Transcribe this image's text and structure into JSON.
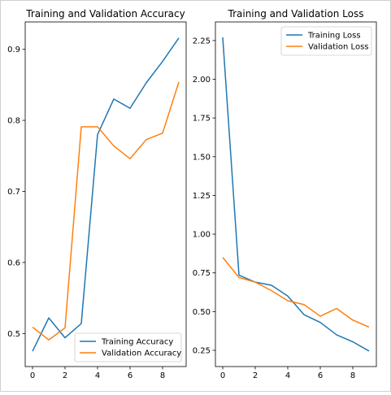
{
  "colors": {
    "training": "#1f77b4",
    "validation": "#ff7f0e"
  },
  "chart_data": [
    {
      "type": "line",
      "title": "Training and Validation Accuracy",
      "xlabel": "",
      "ylabel": "",
      "xlim": [
        -0.45,
        9.45
      ],
      "ylim": [
        0.4535,
        0.9385
      ],
      "x_ticks": [
        0,
        2,
        4,
        6,
        8
      ],
      "x_tick_labels": [
        "0",
        "2",
        "4",
        "6",
        "8"
      ],
      "y_ticks": [
        0.5,
        0.6,
        0.7,
        0.8,
        0.9
      ],
      "y_tick_labels": [
        "0.5",
        "0.6",
        "0.7",
        "0.8",
        "0.9"
      ],
      "grid": false,
      "legend_position": "lower-right",
      "x": [
        0,
        1,
        2,
        3,
        4,
        5,
        6,
        7,
        8,
        9
      ],
      "series": [
        {
          "name": "Training Accuracy",
          "color": "#1f77b4",
          "values": [
            0.475,
            0.522,
            0.494,
            0.514,
            0.78,
            0.83,
            0.817,
            0.853,
            0.883,
            0.916
          ]
        },
        {
          "name": "Validation Accuracy",
          "color": "#ff7f0e",
          "values": [
            0.509,
            0.491,
            0.508,
            0.791,
            0.791,
            0.764,
            0.746,
            0.773,
            0.782,
            0.854
          ]
        }
      ]
    },
    {
      "type": "line",
      "title": "Training and Validation Loss",
      "xlabel": "",
      "ylabel": "",
      "xlim": [
        -0.45,
        9.45
      ],
      "ylim": [
        0.145,
        2.37
      ],
      "x_ticks": [
        0,
        2,
        4,
        6,
        8
      ],
      "x_tick_labels": [
        "0",
        "2",
        "4",
        "6",
        "8"
      ],
      "y_ticks": [
        0.25,
        0.5,
        0.75,
        1.0,
        1.25,
        1.5,
        1.75,
        2.0,
        2.25
      ],
      "y_tick_labels": [
        "0.25",
        "0.50",
        "0.75",
        "1.00",
        "1.25",
        "1.50",
        "1.75",
        "2.00",
        "2.25"
      ],
      "grid": false,
      "legend_position": "upper-right",
      "x": [
        0,
        1,
        2,
        3,
        4,
        5,
        6,
        7,
        8,
        9
      ],
      "series": [
        {
          "name": "Training Loss",
          "color": "#1f77b4",
          "values": [
            2.27,
            0.735,
            0.69,
            0.67,
            0.6,
            0.48,
            0.43,
            0.35,
            0.305,
            0.245
          ]
        },
        {
          "name": "Validation Loss",
          "color": "#ff7f0e",
          "values": [
            0.85,
            0.72,
            0.69,
            0.635,
            0.57,
            0.545,
            0.47,
            0.52,
            0.445,
            0.4
          ]
        }
      ]
    }
  ]
}
